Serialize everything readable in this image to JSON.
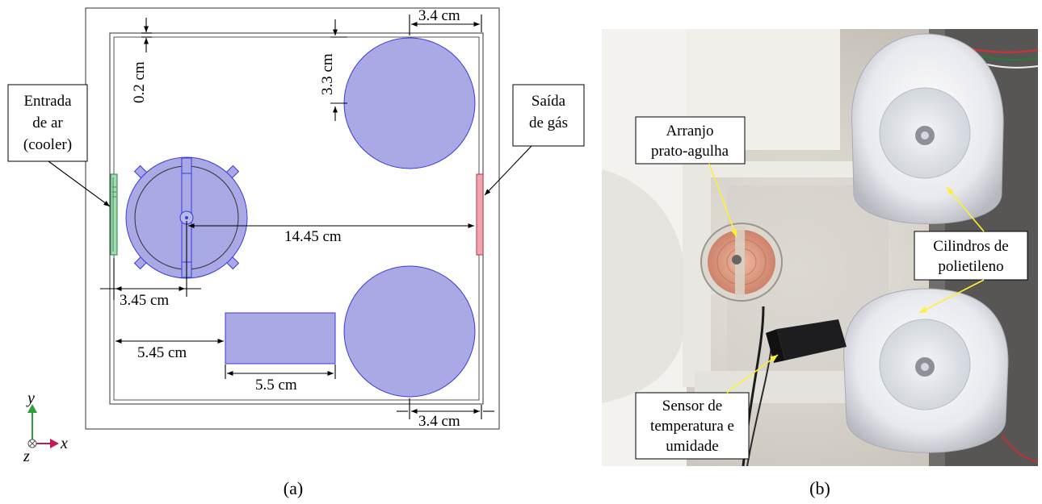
{
  "panel_a": {
    "caption": "(a)",
    "dimensions": {
      "top_right_width": "3.4 cm",
      "wall_thickness": "0.2 cm",
      "circle_top_offset": "3.3 cm",
      "center_distance": "14.45 cm",
      "left_offset": "3.45 cm",
      "rect_offset": "5.45 cm",
      "rect_width": "5.5 cm",
      "bottom_right_width": "3.4 cm"
    },
    "callouts": {
      "inlet_line1": "Entrada",
      "inlet_line2": "de ar",
      "inlet_line3": "(cooler)",
      "outlet_line1": "Saída",
      "outlet_line2": "de gás"
    },
    "axes": {
      "y": "y",
      "x": "x",
      "z": "z"
    },
    "colors": {
      "fill": "#a9a9e6",
      "stroke": "#3b3bd8",
      "inlet": "#9fdcb0",
      "outlet": "#f2a3ad",
      "y_axis": "#2e9e3e",
      "x_axis": "#c2185b"
    }
  },
  "panel_b": {
    "caption": "(b)",
    "labels": {
      "needle_line1": "Arranjo",
      "needle_line2": "prato-agulha",
      "cylinders_line1": "Cilindros de",
      "cylinders_line2": "polietileno",
      "sensor_line1": "Sensor de",
      "sensor_line2": "temperatura e",
      "sensor_line3": "umidade"
    },
    "colors": {
      "pointer": "#ffef3a"
    }
  }
}
